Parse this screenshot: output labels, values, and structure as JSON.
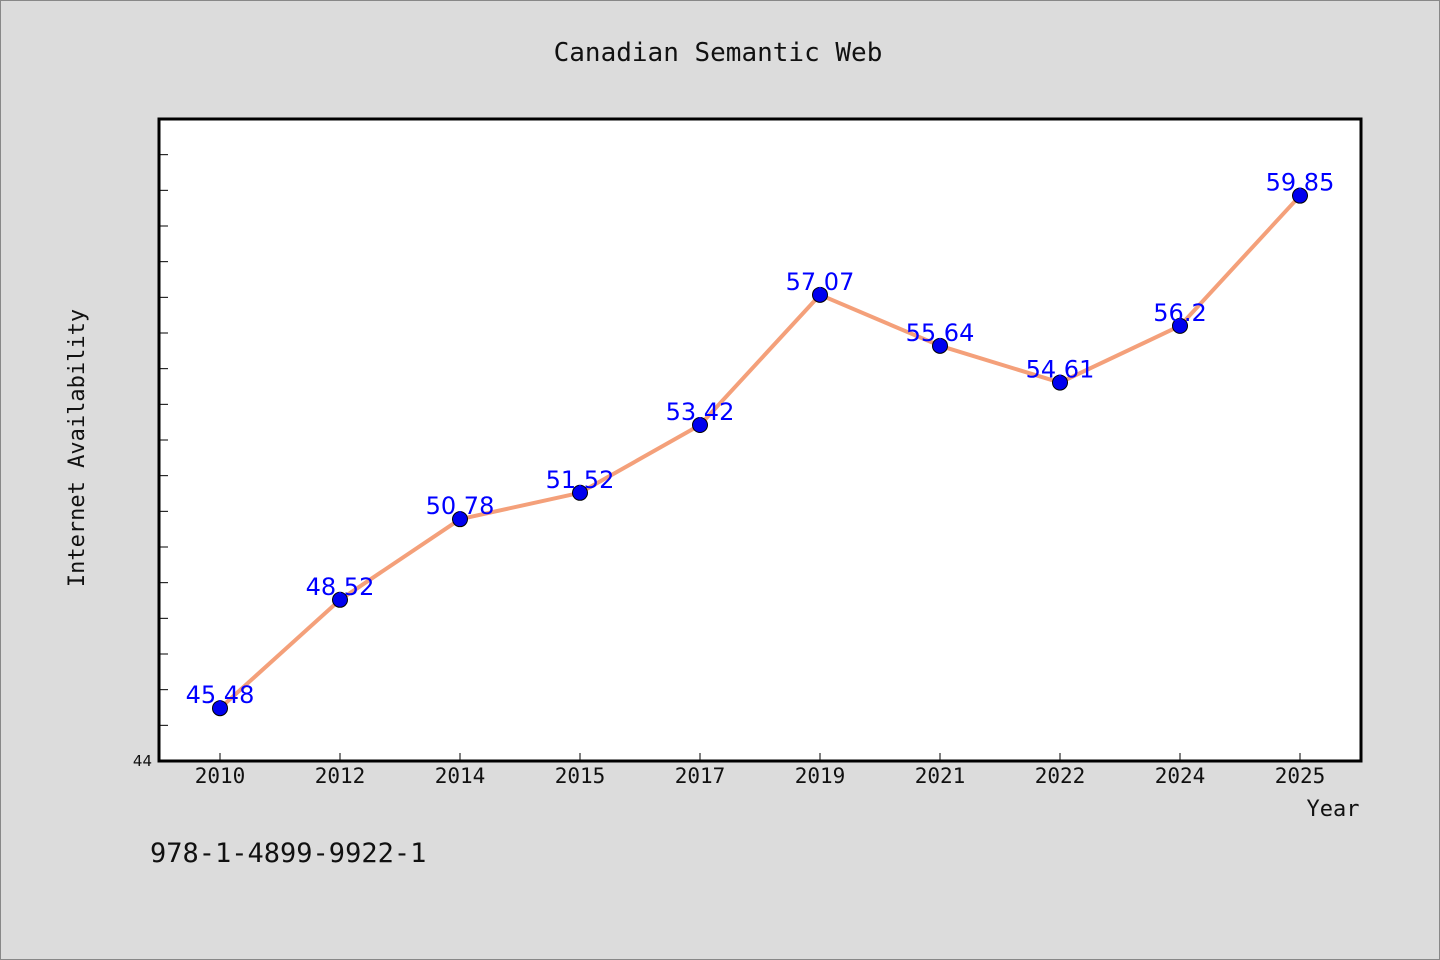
{
  "isbn": "978-1-4899-9922-1",
  "colors": {
    "background": "#dcdcdc",
    "plot_background": "#ffffff",
    "line": "#f4a07a",
    "marker": "#0000ee",
    "data_label": "#0000ff"
  },
  "chart_data": {
    "type": "line",
    "title": "Canadian Semantic Web",
    "xlabel": "Year",
    "ylabel": "Internet Availability",
    "categories": [
      "2010",
      "2012",
      "2014",
      "2015",
      "2017",
      "2019",
      "2021",
      "2022",
      "2024",
      "2025"
    ],
    "series": [
      {
        "values": [
          45.48,
          48.52,
          50.78,
          51.52,
          53.42,
          57.07,
          55.64,
          54.61,
          56.2,
          59.85
        ],
        "data_labels": [
          "45.48",
          "48.52",
          "50.78",
          "51.52",
          "53.42",
          "57.07",
          "55.64",
          "54.61",
          "56.2",
          "59.85"
        ]
      }
    ],
    "ylim": [
      44,
      62
    ],
    "yticks_labeled": [
      "44"
    ],
    "grid": false,
    "legend": "none"
  }
}
